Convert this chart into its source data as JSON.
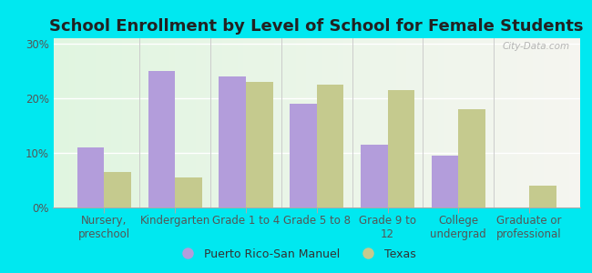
{
  "title": "School Enrollment by Level of School for Female Students",
  "categories": [
    "Nursery,\npreschool",
    "Kindergarten",
    "Grade 1 to 4",
    "Grade 5 to 8",
    "Grade 9 to\n12",
    "College\nundergrad",
    "Graduate or\nprofessional"
  ],
  "pr_values": [
    11,
    25,
    24,
    19,
    11.5,
    9.5,
    0
  ],
  "tx_values": [
    6.5,
    5.5,
    23,
    22.5,
    21.5,
    18,
    4
  ],
  "pr_color": "#b39ddb",
  "tx_color": "#c5ca8e",
  "bg_color": "#00e8f0",
  "plot_bg": "#e8f5e0",
  "ylim": [
    0,
    31
  ],
  "yticks": [
    0,
    10,
    20,
    30
  ],
  "ytick_labels": [
    "0%",
    "10%",
    "20%",
    "30%"
  ],
  "legend_pr": "Puerto Rico-San Manuel",
  "legend_tx": "Texas",
  "title_fontsize": 13,
  "axis_fontsize": 8.5,
  "legend_fontsize": 9,
  "bar_width": 0.38,
  "watermark": "City-Data.com"
}
